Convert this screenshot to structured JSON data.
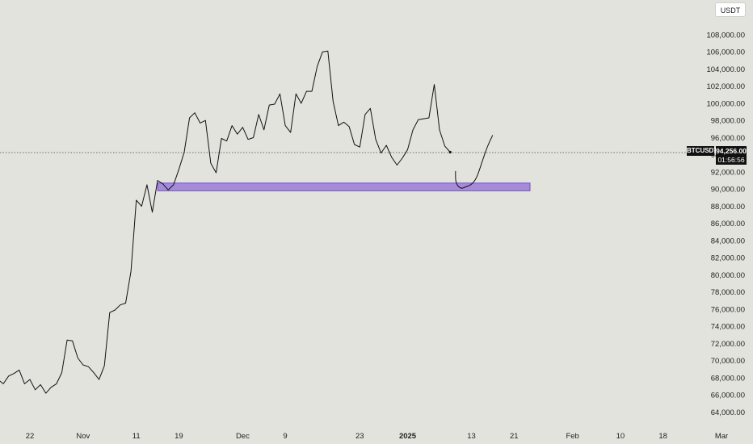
{
  "currency": "USDT",
  "symbol": "BTCUSDT",
  "last_price_label": "94,256.00",
  "countdown": "01:56:56",
  "colors": {
    "background": "#e3e3dd",
    "price_line": "#111111",
    "support_zone_fill": "#a78bdb",
    "support_zone_stroke": "#6f4fc2",
    "text": "#222222"
  },
  "chart_data": {
    "type": "line",
    "title": "",
    "xlabel": "",
    "ylabel": "",
    "ylim": [
      63000,
      109500
    ],
    "y_ticks": [
      64000,
      66000,
      68000,
      70000,
      72000,
      74000,
      76000,
      78000,
      80000,
      82000,
      84000,
      86000,
      88000,
      90000,
      92000,
      94000,
      96000,
      98000,
      100000,
      102000,
      104000,
      106000,
      108000
    ],
    "y_tick_labels": [
      "64,000.00",
      "66,000.00",
      "68,000.00",
      "70,000.00",
      "72,000.00",
      "74,000.00",
      "76,000.00",
      "78,000.00",
      "80,000.00",
      "82,000.00",
      "84,000.00",
      "86,000.00",
      "88,000.00",
      "90,000.00",
      "92,000.00",
      "94,000.00",
      "96,000.00",
      "98,000.00",
      "100,000.00",
      "102,000.00",
      "104,000.00",
      "106,000.00",
      "108,000.00"
    ],
    "x_ticks": [
      {
        "label": "22",
        "date": "2024-10-22"
      },
      {
        "label": "Nov",
        "date": "2024-11-01"
      },
      {
        "label": "11",
        "date": "2024-11-11"
      },
      {
        "label": "19",
        "date": "2024-11-19"
      },
      {
        "label": "Dec",
        "date": "2024-12-01"
      },
      {
        "label": "9",
        "date": "2024-12-09"
      },
      {
        "label": "23",
        "date": "2024-12-23"
      },
      {
        "label": "2025",
        "date": "2025-01-01",
        "bold": true
      },
      {
        "label": "13",
        "date": "2025-01-13"
      },
      {
        "label": "21",
        "date": "2025-01-21"
      },
      {
        "label": "Feb",
        "date": "2025-02-01"
      },
      {
        "label": "10",
        "date": "2025-02-10"
      },
      {
        "label": "18",
        "date": "2025-02-18"
      },
      {
        "label": "Mar",
        "date": "2025-03-01"
      }
    ],
    "grid": false,
    "series": [
      {
        "points": [
          [
            "2024-10-16",
            67800
          ],
          [
            "2024-10-17",
            67300
          ],
          [
            "2024-10-18",
            68200
          ],
          [
            "2024-10-19",
            68500
          ],
          [
            "2024-10-20",
            68900
          ],
          [
            "2024-10-21",
            67300
          ],
          [
            "2024-10-22",
            67800
          ],
          [
            "2024-10-23",
            66600
          ],
          [
            "2024-10-24",
            67200
          ],
          [
            "2024-10-25",
            66200
          ],
          [
            "2024-10-26",
            66900
          ],
          [
            "2024-10-27",
            67300
          ],
          [
            "2024-10-28",
            68600
          ],
          [
            "2024-10-29",
            72400
          ],
          [
            "2024-10-30",
            72300
          ],
          [
            "2024-10-31",
            70300
          ],
          [
            "2024-11-01",
            69500
          ],
          [
            "2024-11-02",
            69300
          ],
          [
            "2024-11-03",
            68600
          ],
          [
            "2024-11-04",
            67800
          ],
          [
            "2024-11-05",
            69400
          ],
          [
            "2024-11-06",
            75600
          ],
          [
            "2024-11-07",
            75900
          ],
          [
            "2024-11-08",
            76500
          ],
          [
            "2024-11-09",
            76700
          ],
          [
            "2024-11-10",
            80400
          ],
          [
            "2024-11-11",
            88700
          ],
          [
            "2024-11-12",
            88000
          ],
          [
            "2024-11-13",
            90500
          ],
          [
            "2024-11-14",
            87300
          ],
          [
            "2024-11-15",
            91000
          ],
          [
            "2024-11-16",
            90600
          ],
          [
            "2024-11-17",
            89900
          ],
          [
            "2024-11-18",
            90500
          ],
          [
            "2024-11-19",
            92300
          ],
          [
            "2024-11-20",
            94300
          ],
          [
            "2024-11-21",
            98300
          ],
          [
            "2024-11-22",
            98900
          ],
          [
            "2024-11-23",
            97700
          ],
          [
            "2024-11-24",
            98000
          ],
          [
            "2024-11-25",
            93000
          ],
          [
            "2024-11-26",
            91900
          ],
          [
            "2024-11-27",
            95900
          ],
          [
            "2024-11-28",
            95600
          ],
          [
            "2024-11-29",
            97400
          ],
          [
            "2024-11-30",
            96400
          ],
          [
            "2024-12-01",
            97200
          ],
          [
            "2024-12-02",
            95800
          ],
          [
            "2024-12-03",
            96000
          ],
          [
            "2024-12-04",
            98700
          ],
          [
            "2024-12-05",
            96900
          ],
          [
            "2024-12-06",
            99800
          ],
          [
            "2024-12-07",
            99900
          ],
          [
            "2024-12-08",
            101100
          ],
          [
            "2024-12-09",
            97400
          ],
          [
            "2024-12-10",
            96600
          ],
          [
            "2024-12-11",
            101100
          ],
          [
            "2024-12-12",
            100000
          ],
          [
            "2024-12-13",
            101400
          ],
          [
            "2024-12-14",
            101400
          ],
          [
            "2024-12-15",
            104300
          ],
          [
            "2024-12-16",
            106000
          ],
          [
            "2024-12-17",
            106100
          ],
          [
            "2024-12-18",
            100200
          ],
          [
            "2024-12-19",
            97400
          ],
          [
            "2024-12-20",
            97800
          ],
          [
            "2024-12-21",
            97300
          ],
          [
            "2024-12-22",
            95200
          ],
          [
            "2024-12-23",
            94900
          ],
          [
            "2024-12-24",
            98700
          ],
          [
            "2024-12-25",
            99400
          ],
          [
            "2024-12-26",
            95800
          ],
          [
            "2024-12-27",
            94200
          ],
          [
            "2024-12-28",
            95100
          ],
          [
            "2024-12-29",
            93700
          ],
          [
            "2024-12-30",
            92800
          ],
          [
            "2024-12-31",
            93600
          ],
          [
            "2025-01-01",
            94600
          ],
          [
            "2025-01-02",
            96900
          ],
          [
            "2025-01-03",
            98100
          ],
          [
            "2025-01-04",
            98200
          ],
          [
            "2025-01-05",
            98300
          ],
          [
            "2025-01-06",
            102200
          ],
          [
            "2025-01-07",
            96900
          ],
          [
            "2025-01-08",
            95000
          ],
          [
            "2025-01-09",
            94300
          ]
        ]
      },
      {
        "projection": true,
        "points": [
          [
            "2025-01-10",
            92100
          ],
          [
            "2025-01-10",
            90700
          ],
          [
            "2025-01-11",
            90000
          ],
          [
            "2025-01-12",
            90300
          ],
          [
            "2025-01-13",
            90500
          ],
          [
            "2025-01-14",
            91300
          ],
          [
            "2025-01-15",
            93200
          ],
          [
            "2025-01-16",
            95000
          ],
          [
            "2025-01-17",
            96300
          ]
        ]
      }
    ],
    "support_zone": {
      "start": "2024-11-15",
      "end": "2025-01-24",
      "low": 89800,
      "high": 90700
    },
    "last_price": 94256
  }
}
